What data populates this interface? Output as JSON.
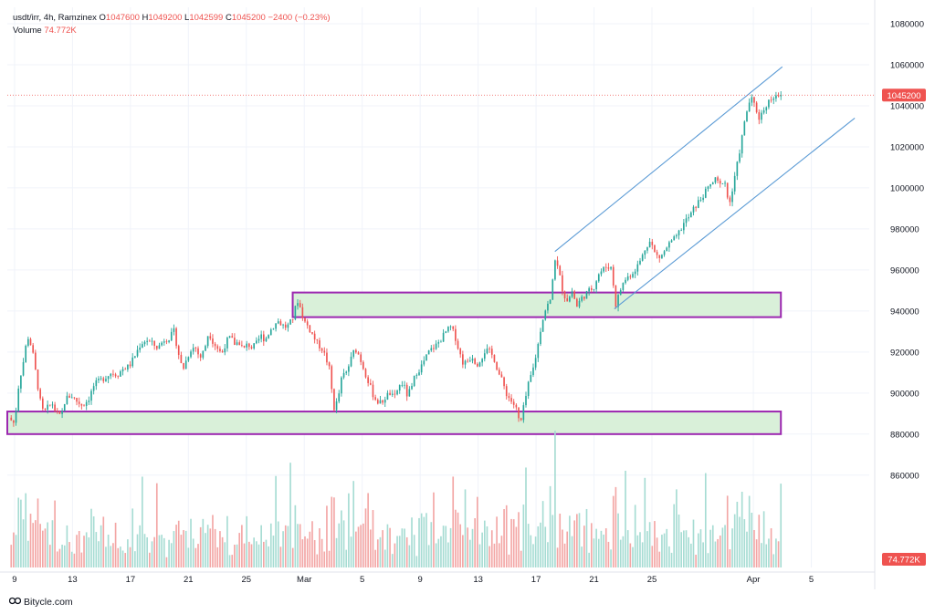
{
  "header": {
    "symbol_line": "usdt/irr, 4h, Ramzinex",
    "open_label": "O",
    "open_value": "1047600",
    "high_label": "H",
    "high_value": "1049200",
    "low_label": "L",
    "low_value": "1042599",
    "close_label": "C",
    "close_value": "1045200",
    "change": "−2400 (−0.23%)",
    "volume_label": "Volume",
    "volume_value": "74.772K"
  },
  "watermark": {
    "text": "Bitycle.com"
  },
  "colors": {
    "up": "#26a69a",
    "down": "#ef5350",
    "up_vol": "#a6dcd3",
    "down_vol": "#f3a6a5",
    "zone_fill": "#d9f0d9",
    "zone_stroke": "#9c27b0",
    "channel": "#5b9bd5",
    "price_line": "#ef5350"
  },
  "chart_data": {
    "type": "candlestick",
    "title": "usdt/irr, 4h, Ramzinex",
    "price_axis": {
      "ticks": [
        860000,
        880000,
        900000,
        920000,
        940000,
        960000,
        980000,
        1000000,
        1020000,
        1040000,
        1060000,
        1080000
      ],
      "range": [
        815000,
        1088000
      ]
    },
    "time_axis": {
      "ticks": [
        {
          "label": "9",
          "day": 9
        },
        {
          "label": "13",
          "day": 13
        },
        {
          "label": "17",
          "day": 17
        },
        {
          "label": "21",
          "day": 21
        },
        {
          "label": "25",
          "day": 25
        },
        {
          "label": "Mar",
          "day": 29
        },
        {
          "label": "5",
          "day": 33
        },
        {
          "label": "9",
          "day": 37
        },
        {
          "label": "13",
          "day": 41
        },
        {
          "label": "17",
          "day": 45
        },
        {
          "label": "21",
          "day": 49
        },
        {
          "label": "25",
          "day": 53
        },
        {
          "label": "Apr",
          "day": 60
        },
        {
          "label": "5",
          "day": 64
        }
      ],
      "range": [
        8.5,
        68
      ]
    },
    "last_price": 1045200,
    "last_price_label": "1045200",
    "last_volume_label": "74.772K",
    "close_path": [
      [
        8.6,
        888000
      ],
      [
        9.0,
        885000
      ],
      [
        9.3,
        905000
      ],
      [
        9.6,
        915000
      ],
      [
        9.9,
        928000
      ],
      [
        10.2,
        922000
      ],
      [
        10.5,
        908000
      ],
      [
        10.8,
        895000
      ],
      [
        11.0,
        890000
      ],
      [
        11.3,
        893000
      ],
      [
        11.6,
        895000
      ],
      [
        11.9,
        890000
      ],
      [
        12.2,
        888000
      ],
      [
        12.5,
        897000
      ],
      [
        12.9,
        899000
      ],
      [
        13.3,
        896000
      ],
      [
        13.7,
        894000
      ],
      [
        14.1,
        897000
      ],
      [
        14.5,
        904000
      ],
      [
        14.9,
        906000
      ],
      [
        15.3,
        908000
      ],
      [
        15.7,
        910000
      ],
      [
        16.1,
        909000
      ],
      [
        16.5,
        912000
      ],
      [
        16.9,
        913000
      ],
      [
        17.3,
        918000
      ],
      [
        17.7,
        924000
      ],
      [
        18.1,
        926000
      ],
      [
        18.5,
        924000
      ],
      [
        18.9,
        922000
      ],
      [
        19.3,
        926000
      ],
      [
        19.7,
        927000
      ],
      [
        20.0,
        930000
      ],
      [
        20.3,
        920000
      ],
      [
        20.6,
        911000
      ],
      [
        20.9,
        917000
      ],
      [
        21.2,
        922000
      ],
      [
        21.5,
        922000
      ],
      [
        21.8,
        917000
      ],
      [
        22.1,
        921000
      ],
      [
        22.4,
        930000
      ],
      [
        22.7,
        925000
      ],
      [
        23.0,
        922000
      ],
      [
        23.3,
        919000
      ],
      [
        23.6,
        925000
      ],
      [
        23.9,
        927000
      ],
      [
        24.2,
        924000
      ],
      [
        24.5,
        925000
      ],
      [
        24.8,
        921000
      ],
      [
        25.1,
        924000
      ],
      [
        25.4,
        922000
      ],
      [
        25.7,
        924000
      ],
      [
        26.0,
        928000
      ],
      [
        26.3,
        926000
      ],
      [
        26.6,
        930000
      ],
      [
        26.9,
        933000
      ],
      [
        27.2,
        935000
      ],
      [
        27.5,
        933000
      ],
      [
        27.8,
        932000
      ],
      [
        28.1,
        935000
      ],
      [
        28.3,
        938000
      ],
      [
        28.5,
        946000
      ],
      [
        28.7,
        942000
      ],
      [
        29.0,
        935000
      ],
      [
        29.3,
        932000
      ],
      [
        29.6,
        928000
      ],
      [
        29.9,
        924000
      ],
      [
        30.2,
        922000
      ],
      [
        30.5,
        917000
      ],
      [
        30.8,
        910000
      ],
      [
        31.0,
        892000
      ],
      [
        31.3,
        896000
      ],
      [
        31.6,
        908000
      ],
      [
        31.9,
        910000
      ],
      [
        32.2,
        916000
      ],
      [
        32.5,
        922000
      ],
      [
        32.8,
        918000
      ],
      [
        33.1,
        912000
      ],
      [
        33.4,
        906000
      ],
      [
        33.7,
        900000
      ],
      [
        34.0,
        896000
      ],
      [
        34.3,
        895000
      ],
      [
        34.6,
        898000
      ],
      [
        34.9,
        900000
      ],
      [
        35.2,
        897000
      ],
      [
        35.5,
        903000
      ],
      [
        35.8,
        905000
      ],
      [
        36.1,
        899000
      ],
      [
        36.4,
        902000
      ],
      [
        36.7,
        910000
      ],
      [
        37.0,
        912000
      ],
      [
        37.3,
        916000
      ],
      [
        37.6,
        920000
      ],
      [
        37.9,
        922000
      ],
      [
        38.2,
        924000
      ],
      [
        38.5,
        927000
      ],
      [
        38.8,
        930000
      ],
      [
        39.1,
        932000
      ],
      [
        39.4,
        928000
      ],
      [
        39.7,
        920000
      ],
      [
        40.0,
        914000
      ],
      [
        40.3,
        916000
      ],
      [
        40.6,
        918000
      ],
      [
        40.9,
        914000
      ],
      [
        41.2,
        917000
      ],
      [
        41.5,
        921000
      ],
      [
        41.8,
        920000
      ],
      [
        42.1,
        917000
      ],
      [
        42.4,
        910000
      ],
      [
        42.7,
        905000
      ],
      [
        43.0,
        899000
      ],
      [
        43.3,
        896000
      ],
      [
        43.6,
        893000
      ],
      [
        43.9,
        884000
      ],
      [
        44.2,
        895000
      ],
      [
        44.5,
        905000
      ],
      [
        44.8,
        912000
      ],
      [
        45.1,
        922000
      ],
      [
        45.4,
        935000
      ],
      [
        45.7,
        942000
      ],
      [
        46.0,
        945000
      ],
      [
        46.3,
        966000
      ],
      [
        46.6,
        958000
      ],
      [
        46.9,
        948000
      ],
      [
        47.2,
        945000
      ],
      [
        47.5,
        950000
      ],
      [
        47.8,
        942000
      ],
      [
        48.1,
        946000
      ],
      [
        48.4,
        948000
      ],
      [
        48.7,
        950000
      ],
      [
        49.0,
        952000
      ],
      [
        49.3,
        958000
      ],
      [
        49.6,
        960000
      ],
      [
        49.9,
        962000
      ],
      [
        50.2,
        961000
      ],
      [
        50.5,
        943000
      ],
      [
        50.8,
        950000
      ],
      [
        51.1,
        955000
      ],
      [
        51.4,
        957000
      ],
      [
        51.7,
        959000
      ],
      [
        52.0,
        962000
      ],
      [
        52.3,
        966000
      ],
      [
        52.6,
        972000
      ],
      [
        52.9,
        974000
      ],
      [
        53.2,
        968000
      ],
      [
        53.5,
        966000
      ],
      [
        53.8,
        968000
      ],
      [
        54.1,
        972000
      ],
      [
        54.4,
        974000
      ],
      [
        54.7,
        976000
      ],
      [
        55.0,
        980000
      ],
      [
        55.3,
        984000
      ],
      [
        55.6,
        986000
      ],
      [
        55.9,
        990000
      ],
      [
        56.2,
        993000
      ],
      [
        56.5,
        996000
      ],
      [
        56.8,
        999000
      ],
      [
        57.1,
        1002000
      ],
      [
        57.4,
        1004000
      ],
      [
        57.7,
        1001000
      ],
      [
        58.0,
        1005000
      ],
      [
        58.3,
        991000
      ],
      [
        58.6,
        1000000
      ],
      [
        58.9,
        1012000
      ],
      [
        59.2,
        1024000
      ],
      [
        59.5,
        1036000
      ],
      [
        59.8,
        1044000
      ],
      [
        60.1,
        1040000
      ],
      [
        60.4,
        1034000
      ],
      [
        60.7,
        1038000
      ],
      [
        61.0,
        1042000
      ],
      [
        61.3,
        1044000
      ],
      [
        61.6,
        1046000
      ],
      [
        61.9,
        1045200
      ]
    ],
    "annotations": [
      {
        "kind": "zone",
        "label": "",
        "from_day": 28.2,
        "to_day": 61.9,
        "low": 937000,
        "high": 949000
      },
      {
        "kind": "zone",
        "label": "",
        "from_day": 8.5,
        "to_day": 61.9,
        "low": 880000,
        "high": 891000
      },
      {
        "kind": "channel-line",
        "label": "",
        "from": [
          46.3,
          969000
        ],
        "to": [
          62.0,
          1059000
        ]
      },
      {
        "kind": "channel-line",
        "label": "",
        "from": [
          50.4,
          941000
        ],
        "to": [
          67.0,
          1034000
        ]
      }
    ]
  }
}
